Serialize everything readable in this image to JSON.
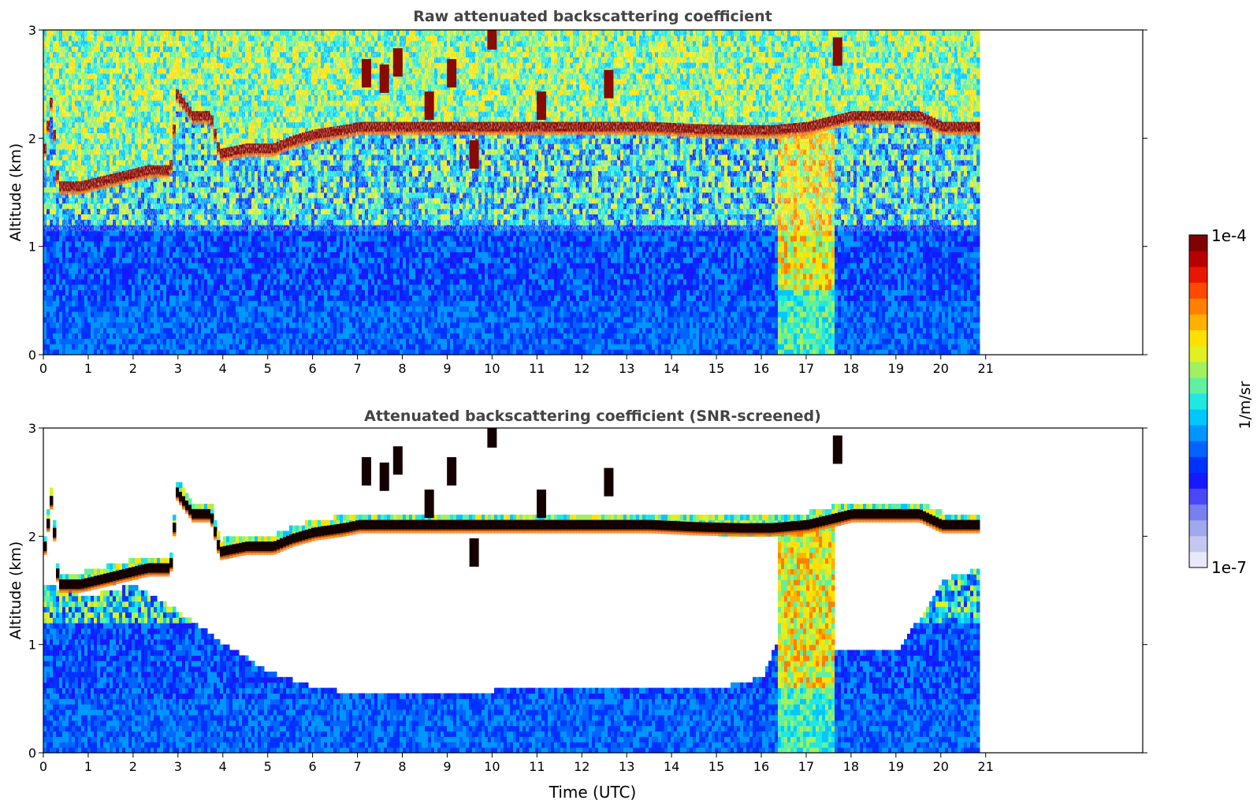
{
  "chart_data": [
    {
      "type": "heatmap",
      "title": "Raw attenuated backscattering coefficient",
      "xlabel": "",
      "ylabel": "Altitude (km)",
      "xlim": [
        0,
        24.5
      ],
      "ylim": [
        0,
        3
      ],
      "xticks": [
        "0",
        "1",
        "2",
        "3",
        "4",
        "5",
        "6",
        "7",
        "8",
        "9",
        "10",
        "11",
        "12",
        "13",
        "14",
        "15",
        "16",
        "17",
        "18",
        "19",
        "20",
        "21"
      ],
      "yticks": [
        "0",
        "1",
        "2",
        "3"
      ],
      "data_extent_hours": 20.8,
      "screened": false,
      "cloud_layer_km": [
        [
          0,
          1.9
        ],
        [
          0.15,
          2.35
        ],
        [
          0.3,
          1.55
        ],
        [
          0.8,
          1.55
        ],
        [
          1.8,
          1.65
        ],
        [
          2.3,
          1.7
        ],
        [
          2.8,
          1.7
        ],
        [
          2.95,
          2.4
        ],
        [
          3.3,
          2.2
        ],
        [
          3.7,
          2.2
        ],
        [
          3.9,
          1.85
        ],
        [
          4.5,
          1.9
        ],
        [
          5.1,
          1.9
        ],
        [
          5.5,
          1.97
        ],
        [
          6.0,
          2.03
        ],
        [
          6.5,
          2.06
        ],
        [
          6.8,
          2.08
        ],
        [
          7.0,
          2.1
        ],
        [
          11.0,
          2.1
        ],
        [
          12.0,
          2.1
        ],
        [
          13.5,
          2.1
        ],
        [
          14.5,
          2.08
        ],
        [
          15.5,
          2.07
        ],
        [
          16.2,
          2.07
        ],
        [
          17.0,
          2.1
        ],
        [
          18.0,
          2.2
        ],
        [
          19.0,
          2.2
        ],
        [
          19.5,
          2.2
        ],
        [
          20.0,
          2.1
        ],
        [
          20.8,
          2.1
        ]
      ],
      "elevated_cloud_km": [
        [
          7.2,
          2.6
        ],
        [
          7.6,
          2.55
        ],
        [
          7.9,
          2.7
        ],
        [
          8.6,
          2.3
        ],
        [
          9.1,
          2.6
        ],
        [
          9.6,
          1.85
        ],
        [
          10.0,
          2.95
        ],
        [
          11.1,
          2.3
        ],
        [
          12.6,
          2.5
        ],
        [
          17.7,
          2.8
        ]
      ],
      "aerosol_plume": {
        "start_hour": 16.3,
        "end_hour": 17.6,
        "top_km": 2.1
      }
    },
    {
      "type": "heatmap",
      "title": "Attenuated backscattering coefficient (SNR-screened)",
      "xlabel": "Time (UTC)",
      "ylabel": "Altitude (km)",
      "xlim": [
        0,
        24.5
      ],
      "ylim": [
        0,
        3
      ],
      "xticks": [
        "0",
        "1",
        "2",
        "3",
        "4",
        "5",
        "6",
        "7",
        "8",
        "9",
        "10",
        "11",
        "12",
        "13",
        "14",
        "15",
        "16",
        "17",
        "18",
        "19",
        "20",
        "21"
      ],
      "yticks": [
        "0",
        "1",
        "2",
        "3"
      ],
      "data_extent_hours": 20.8,
      "screened": true,
      "boundary_layer_top_km": [
        [
          0,
          1.55
        ],
        [
          1.0,
          1.45
        ],
        [
          2.0,
          1.55
        ],
        [
          3.0,
          1.3
        ],
        [
          4.0,
          1.0
        ],
        [
          5.0,
          0.75
        ],
        [
          6.0,
          0.6
        ],
        [
          7.0,
          0.55
        ],
        [
          9.0,
          0.55
        ],
        [
          11.0,
          0.6
        ],
        [
          13.0,
          0.6
        ],
        [
          15.0,
          0.6
        ],
        [
          16.0,
          0.7
        ],
        [
          16.3,
          1.0
        ],
        [
          18.0,
          0.95
        ],
        [
          19.0,
          0.95
        ],
        [
          19.6,
          1.3
        ],
        [
          20.0,
          1.6
        ],
        [
          20.8,
          1.7
        ]
      ],
      "aerosol_plume": {
        "start_hour": 16.3,
        "end_hour": 17.6,
        "top_km": 2.1
      }
    }
  ],
  "colorbar": {
    "label": "1/m/sr",
    "max_label": "1e-4",
    "min_label": "1e-7",
    "colors": [
      "#e8e8f8",
      "#c4c8f0",
      "#a0a8ee",
      "#7880f0",
      "#4848f8",
      "#1818ff",
      "#0032ff",
      "#0064ff",
      "#0096ff",
      "#00c8ff",
      "#20e8e0",
      "#60f0a0",
      "#a0f060",
      "#e0f020",
      "#ffe000",
      "#ffb000",
      "#ff8000",
      "#ff4800",
      "#e81800",
      "#b80000",
      "#800000"
    ]
  }
}
